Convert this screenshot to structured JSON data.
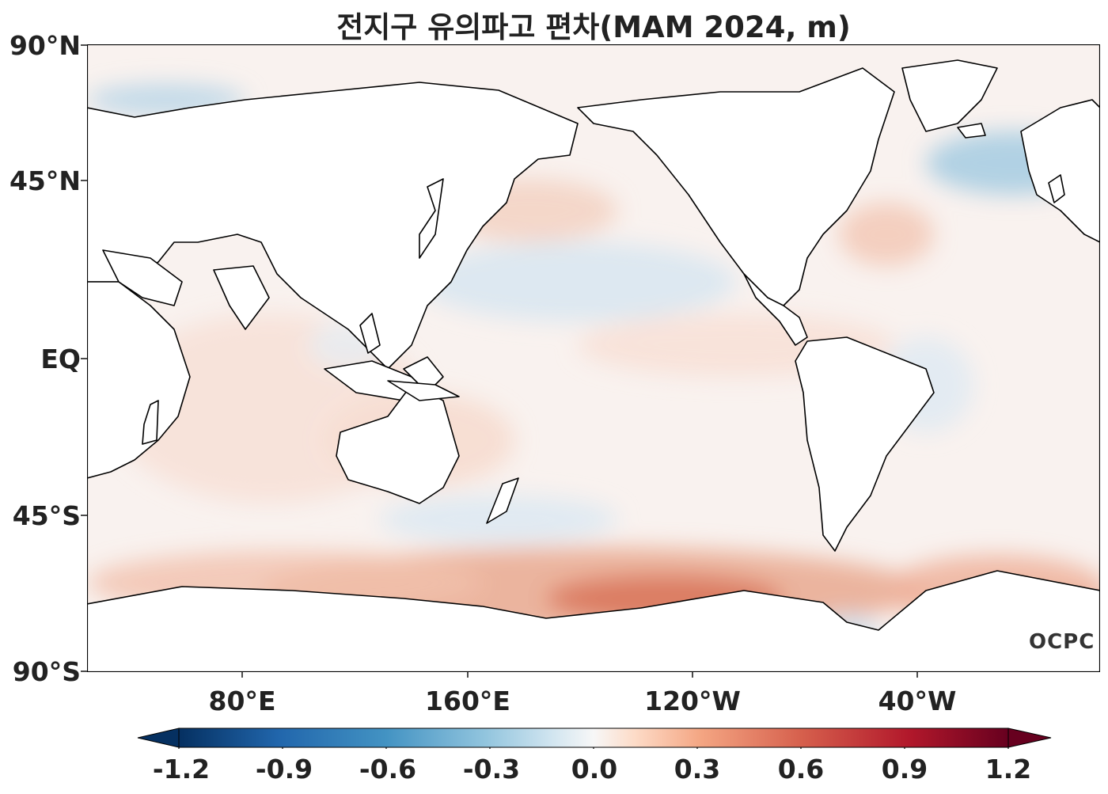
{
  "title": "전지구 유의파고 편차(MAM 2024, m)",
  "lat_labels": [
    "90°N",
    "45°N",
    "EQ",
    "45°S",
    "90°S"
  ],
  "lon_labels": [
    "80°E",
    "160°E",
    "120°W",
    "40°W"
  ],
  "logo": "OCPC",
  "colorbar": {
    "ticks": [
      "-1.2",
      "-0.9",
      "-0.6",
      "-0.3",
      "0.0",
      "0.3",
      "0.6",
      "0.9",
      "1.2"
    ],
    "range": [
      -1.2,
      1.2
    ],
    "colormap": "RdBu_r",
    "extend": "both",
    "colors": [
      "#053061",
      "#2166ac",
      "#4393c3",
      "#92c5de",
      "#d1e5f0",
      "#f7f7f7",
      "#fddbc7",
      "#f4a582",
      "#d6604d",
      "#b2182b",
      "#67001f"
    ]
  }
}
